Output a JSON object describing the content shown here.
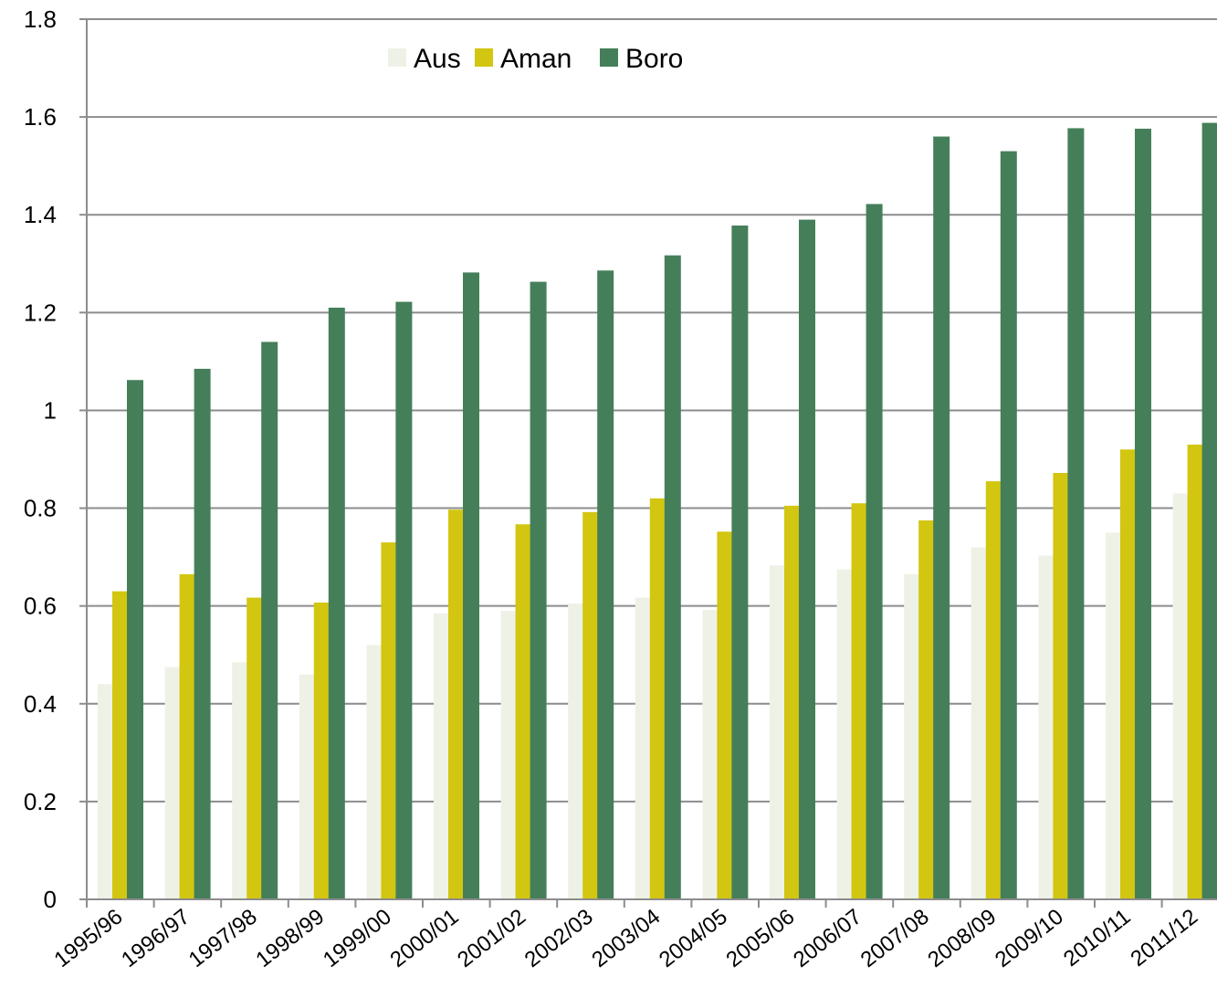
{
  "chart_data": {
    "type": "bar",
    "title": "",
    "xlabel": "",
    "ylabel": "",
    "ylim": [
      0,
      1.8
    ],
    "yticks": [
      "0",
      "0.2",
      "0.4",
      "0.6",
      "0.8",
      "1",
      "1.2",
      "1.4",
      "1.6",
      "1.8"
    ],
    "grid": true,
    "legend_position": "top-center",
    "categories": [
      "1995/96",
      "1996/97",
      "1997/98",
      "1998/99",
      "1999/00",
      "2000/01",
      "2001/02",
      "2002/03",
      "2003/04",
      "2004/05",
      "2005/06",
      "2006/07",
      "2007/08",
      "2008/09",
      "2009/10",
      "2010/11",
      "2011/12"
    ],
    "series": [
      {
        "name": "Aus",
        "color": "#eef2e6",
        "values": [
          0.44,
          0.475,
          0.485,
          0.46,
          0.52,
          0.585,
          0.59,
          0.605,
          0.617,
          0.592,
          0.683,
          0.675,
          0.665,
          0.72,
          0.703,
          0.75,
          0.83
        ]
      },
      {
        "name": "Aman",
        "color": "#d2c611",
        "values": [
          0.63,
          0.665,
          0.617,
          0.607,
          0.73,
          0.797,
          0.767,
          0.792,
          0.82,
          0.752,
          0.805,
          0.81,
          0.775,
          0.855,
          0.872,
          0.92,
          0.93
        ]
      },
      {
        "name": "Boro",
        "color": "#457f5a",
        "values": [
          1.062,
          1.085,
          1.14,
          1.21,
          1.222,
          1.282,
          1.263,
          1.286,
          1.317,
          1.378,
          1.39,
          1.422,
          1.56,
          1.53,
          1.577,
          1.576,
          1.588
        ]
      }
    ]
  }
}
